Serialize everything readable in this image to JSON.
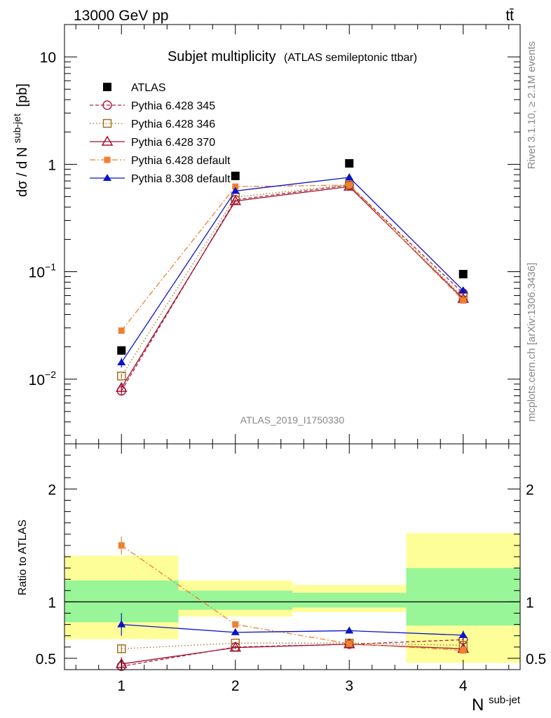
{
  "header": {
    "energy_label": "13000 GeV pp",
    "process_label": "tt̄"
  },
  "side_labels": {
    "rivet": "Rivet 3.1.10, ≥ 2.1M events",
    "source": "mcplots.cern.ch [arXiv:1306.3436]"
  },
  "chart_data": [
    {
      "type": "scatter",
      "title": "Subjet multiplicity",
      "subtitle": "(ATLAS semileptonic ttbar)",
      "analysis_id": "ATLAS_2019_I1750330",
      "ylabel_main": "dσ / d N",
      "ylabel_sup": "sub-jet",
      "ylabel_unit": "[pb]",
      "yscale": "log",
      "xlim": [
        0.5,
        4.5
      ],
      "ylim": [
        0.0025,
        20
      ],
      "x_ticks": [
        1,
        2,
        3,
        4
      ],
      "y_ticks": [
        {
          "value": 10,
          "base": "10",
          "exp": ""
        },
        {
          "value": 1,
          "base": "1",
          "exp": ""
        },
        {
          "value": 0.1,
          "base": "10",
          "exp": "−1"
        },
        {
          "value": 0.01,
          "base": "10",
          "exp": "−2"
        }
      ],
      "legend_position": "top-left",
      "x": [
        1,
        2,
        3,
        4
      ],
      "series": [
        {
          "name": "ATLAS",
          "color": "#000000",
          "marker": "square-filled",
          "dash": "none",
          "values": [
            0.0185,
            0.78,
            1.02,
            0.095
          ],
          "errors": [
            0.0005,
            0.01,
            0.01,
            0.002
          ]
        },
        {
          "name": "Pythia 6.428 345",
          "color": "#b22244",
          "marker": "circle-open",
          "dash": "5,3",
          "values": [
            0.0078,
            0.468,
            0.638,
            0.063
          ],
          "errors": [
            0.0008,
            0.01,
            0.01,
            0.002
          ]
        },
        {
          "name": "Pythia 6.428 346",
          "color": "#a07020",
          "marker": "square-open",
          "dash": "1.5,3",
          "values": [
            0.0107,
            0.495,
            0.645,
            0.058
          ],
          "errors": [
            0.0006,
            0.01,
            0.01,
            0.002
          ]
        },
        {
          "name": "Pythia 6.428 370",
          "color": "#a01030",
          "marker": "triangle-open",
          "dash": "none",
          "values": [
            0.0083,
            0.455,
            0.62,
            0.056
          ],
          "errors": [
            0.0008,
            0.01,
            0.01,
            0.002
          ]
        },
        {
          "name": "Pythia 6.428 default",
          "color": "#f08030",
          "marker": "square-filled-small",
          "dash": "8,3,2,3",
          "values": [
            0.0283,
            0.62,
            0.64,
            0.054
          ],
          "errors": [
            0.0015,
            0.01,
            0.01,
            0.002
          ]
        },
        {
          "name": "Pythia 8.308 default",
          "color": "#0a14c8",
          "marker": "triangle-filled",
          "dash": "none",
          "values": [
            0.0143,
            0.565,
            0.755,
            0.067
          ],
          "errors": [
            0.0015,
            0.01,
            0.01,
            0.002
          ]
        }
      ]
    },
    {
      "type": "scatter",
      "ylabel": "Ratio to ATLAS",
      "xlabel_main": "N",
      "xlabel_sup": "sub-jet",
      "xlim": [
        0.5,
        4.5
      ],
      "ylim": [
        0.4,
        2.4
      ],
      "x_ticks": [
        1,
        2,
        3,
        4
      ],
      "y_ticks": [
        0.5,
        1,
        2
      ],
      "y_tick_labels": [
        "0.5",
        "1",
        "2"
      ],
      "x": [
        1,
        2,
        3,
        4
      ],
      "bands": [
        {
          "x0": 0.5,
          "x1": 1.5,
          "inner": [
            0.82,
            1.19
          ],
          "outer": [
            0.67,
            1.41
          ]
        },
        {
          "x0": 1.5,
          "x1": 2.5,
          "inner": [
            0.93,
            1.1
          ],
          "outer": [
            0.87,
            1.19
          ]
        },
        {
          "x0": 2.5,
          "x1": 3.5,
          "inner": [
            0.95,
            1.08
          ],
          "outer": [
            0.91,
            1.15
          ]
        },
        {
          "x0": 3.5,
          "x1": 4.5,
          "inner": [
            0.79,
            1.3
          ],
          "outer": [
            0.46,
            1.61
          ]
        }
      ],
      "band_colors": {
        "inner": "#98f598",
        "outer": "#fefe98"
      },
      "series": [
        {
          "name": "Pythia 6.428 345",
          "values": [
            0.43,
            0.6,
            0.625,
            0.665
          ],
          "errors": [
            0.06,
            0.012,
            0.008,
            0.03
          ]
        },
        {
          "name": "Pythia 6.428 346",
          "values": [
            0.585,
            0.635,
            0.635,
            0.615
          ],
          "errors": [
            0.04,
            0.012,
            0.008,
            0.03
          ]
        },
        {
          "name": "Pythia 6.428 370",
          "values": [
            0.45,
            0.595,
            0.625,
            0.585
          ],
          "errors": [
            0.06,
            0.012,
            0.008,
            0.03
          ]
        },
        {
          "name": "Pythia 6.428 default",
          "values": [
            1.5,
            0.8,
            0.63,
            0.57
          ],
          "errors": [
            0.08,
            0.012,
            0.008,
            0.03
          ]
        },
        {
          "name": "Pythia 8.308 default",
          "values": [
            0.8,
            0.73,
            0.745,
            0.705
          ],
          "errors": [
            0.1,
            0.015,
            0.01,
            0.04
          ]
        }
      ]
    }
  ]
}
